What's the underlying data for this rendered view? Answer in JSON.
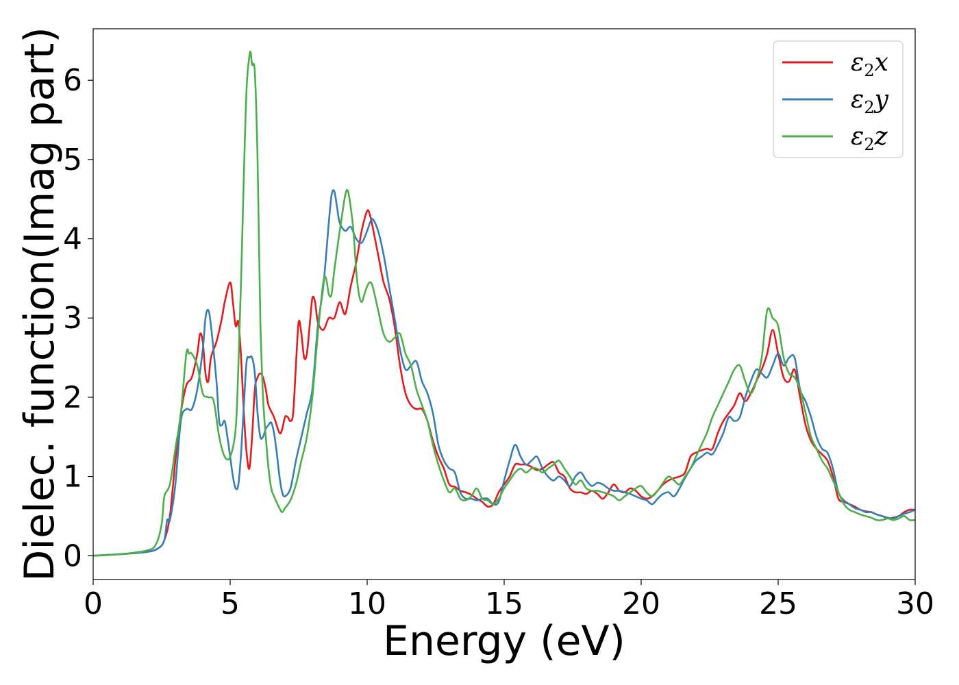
{
  "chart_data": {
    "type": "line",
    "xlabel": "Energy (eV)",
    "ylabel": "Dielec. function(Imag part)",
    "xlim": [
      0,
      30
    ],
    "ylim": [
      -0.3,
      6.65
    ],
    "xticks": [
      0,
      5,
      10,
      15,
      20,
      25,
      30
    ],
    "yticks": [
      0,
      1,
      2,
      3,
      4,
      5,
      6
    ],
    "grid": false,
    "legend_position": "top-right",
    "series": [
      {
        "name": "ε₂x",
        "legend_base": "ε",
        "legend_sub": "2",
        "legend_var": "x",
        "color": "#e41a1c",
        "x": [
          0,
          1,
          2,
          2.4,
          2.6,
          2.8,
          3.0,
          3.2,
          3.4,
          3.6,
          3.8,
          3.9,
          4.0,
          4.1,
          4.2,
          4.3,
          4.5,
          4.7,
          4.8,
          5.0,
          5.1,
          5.2,
          5.3,
          5.4,
          5.5,
          5.6,
          5.7,
          5.8,
          5.9,
          6.0,
          6.1,
          6.2,
          6.3,
          6.4,
          6.6,
          6.8,
          6.9,
          7.0,
          7.1,
          7.2,
          7.3,
          7.4,
          7.5,
          7.6,
          7.7,
          7.8,
          7.9,
          8.0,
          8.1,
          8.2,
          8.4,
          8.6,
          8.8,
          9.0,
          9.2,
          9.4,
          9.6,
          9.8,
          10.0,
          10.1,
          10.2,
          10.4,
          10.6,
          10.8,
          11.0,
          11.2,
          11.4,
          11.6,
          11.8,
          12.0,
          12.2,
          12.4,
          12.6,
          12.8,
          13.0,
          13.2,
          13.4,
          13.6,
          13.8,
          14.0,
          14.2,
          14.4,
          14.6,
          14.8,
          15.0,
          15.2,
          15.4,
          15.6,
          15.8,
          16.0,
          16.2,
          16.4,
          16.6,
          16.8,
          17.0,
          17.2,
          17.4,
          17.6,
          17.8,
          18.0,
          18.2,
          18.4,
          18.6,
          18.8,
          19.0,
          19.2,
          19.4,
          19.6,
          19.8,
          20.0,
          20.2,
          20.4,
          20.6,
          20.8,
          21.0,
          21.2,
          21.4,
          21.6,
          21.8,
          22.0,
          22.2,
          22.4,
          22.6,
          22.8,
          23.0,
          23.2,
          23.4,
          23.6,
          23.8,
          24.0,
          24.2,
          24.4,
          24.6,
          24.8,
          25.0,
          25.2,
          25.4,
          25.6,
          25.8,
          26.0,
          26.2,
          26.4,
          26.6,
          26.8,
          27.0,
          27.2,
          27.4,
          27.6,
          27.8,
          28.0,
          28.2,
          28.4,
          28.6,
          28.8,
          29.0,
          29.2,
          29.4,
          29.6,
          29.8,
          30.0
        ],
        "y": [
          0,
          0.02,
          0.05,
          0.1,
          0.2,
          0.5,
          1.2,
          1.8,
          2.15,
          2.25,
          2.55,
          2.8,
          2.7,
          2.3,
          2.2,
          2.5,
          2.7,
          3.0,
          3.2,
          3.45,
          3.2,
          2.9,
          2.95,
          2.5,
          1.8,
          1.3,
          1.1,
          1.5,
          2.1,
          2.25,
          2.3,
          2.25,
          2.1,
          1.9,
          1.75,
          1.55,
          1.6,
          1.75,
          1.75,
          1.7,
          1.8,
          2.4,
          2.95,
          2.8,
          2.5,
          2.55,
          2.9,
          3.25,
          3.2,
          2.95,
          2.85,
          3.0,
          3.0,
          3.2,
          3.05,
          3.4,
          3.7,
          4.1,
          4.35,
          4.3,
          4.15,
          3.8,
          3.45,
          3.25,
          2.9,
          2.4,
          2.05,
          1.9,
          1.85,
          1.85,
          1.7,
          1.45,
          1.25,
          1.1,
          0.9,
          0.87,
          0.82,
          0.8,
          0.77,
          0.72,
          0.68,
          0.62,
          0.65,
          0.8,
          0.9,
          1.0,
          1.15,
          1.15,
          1.15,
          1.12,
          1.08,
          1.1,
          1.15,
          1.18,
          1.05,
          1.0,
          0.85,
          0.8,
          0.8,
          0.78,
          0.82,
          0.78,
          0.72,
          0.8,
          0.9,
          0.82,
          0.8,
          0.85,
          0.82,
          0.75,
          0.72,
          0.75,
          0.82,
          0.9,
          0.95,
          0.98,
          1.0,
          1.05,
          1.25,
          1.3,
          1.33,
          1.35,
          1.35,
          1.55,
          1.7,
          1.8,
          1.9,
          2.05,
          1.95,
          2.05,
          2.2,
          2.35,
          2.55,
          2.85,
          2.55,
          2.25,
          2.2,
          2.35,
          2.0,
          1.65,
          1.45,
          1.35,
          1.28,
          1.2,
          1.0,
          0.72,
          0.68,
          0.65,
          0.62,
          0.58,
          0.56,
          0.55,
          0.52,
          0.5,
          0.47,
          0.48,
          0.5,
          0.55,
          0.58,
          0.58
        ]
      },
      {
        "name": "ε₂y",
        "legend_base": "ε",
        "legend_sub": "2",
        "legend_var": "y",
        "color": "#377eb8",
        "x": [
          0,
          1,
          2,
          2.4,
          2.6,
          2.7,
          2.8,
          3.0,
          3.2,
          3.4,
          3.6,
          3.8,
          4.0,
          4.1,
          4.2,
          4.3,
          4.5,
          4.6,
          4.7,
          4.8,
          4.9,
          5.0,
          5.1,
          5.2,
          5.3,
          5.4,
          5.5,
          5.6,
          5.7,
          5.8,
          5.9,
          6.0,
          6.1,
          6.2,
          6.3,
          6.4,
          6.5,
          6.6,
          6.7,
          6.8,
          6.9,
          7.0,
          7.2,
          7.4,
          7.6,
          7.8,
          8.0,
          8.2,
          8.4,
          8.6,
          8.7,
          8.8,
          8.9,
          9.0,
          9.2,
          9.4,
          9.6,
          9.8,
          10.0,
          10.1,
          10.2,
          10.4,
          10.6,
          10.8,
          11.0,
          11.2,
          11.4,
          11.6,
          11.8,
          12.0,
          12.2,
          12.4,
          12.6,
          12.8,
          13.0,
          13.2,
          13.4,
          13.6,
          13.8,
          14.0,
          14.2,
          14.4,
          14.6,
          14.8,
          15.0,
          15.2,
          15.4,
          15.6,
          15.8,
          16.0,
          16.2,
          16.4,
          16.6,
          16.8,
          17.0,
          17.2,
          17.4,
          17.6,
          17.8,
          18.0,
          18.2,
          18.4,
          18.6,
          18.8,
          19.0,
          19.2,
          19.4,
          19.6,
          19.8,
          20.0,
          20.2,
          20.4,
          20.6,
          20.8,
          21.0,
          21.2,
          21.4,
          21.6,
          21.8,
          22.0,
          22.2,
          22.4,
          22.6,
          22.8,
          23.0,
          23.2,
          23.4,
          23.6,
          23.8,
          24.0,
          24.2,
          24.4,
          24.6,
          24.8,
          25.0,
          25.2,
          25.4,
          25.6,
          25.8,
          26.0,
          26.2,
          26.4,
          26.6,
          26.8,
          27.0,
          27.2,
          27.4,
          27.6,
          27.8,
          28.0,
          28.2,
          28.4,
          28.6,
          28.8,
          29.0,
          29.2,
          29.4,
          29.6,
          29.8,
          30.0
        ],
        "y": [
          0,
          0.02,
          0.05,
          0.1,
          0.2,
          0.45,
          0.45,
          0.9,
          1.7,
          1.85,
          1.85,
          2.1,
          2.6,
          3.0,
          3.1,
          2.9,
          2.2,
          1.7,
          1.65,
          1.7,
          1.5,
          1.25,
          1.0,
          0.85,
          0.9,
          1.3,
          1.9,
          2.45,
          2.5,
          2.5,
          2.3,
          1.8,
          1.5,
          1.5,
          1.6,
          1.65,
          1.68,
          1.55,
          1.3,
          1.0,
          0.8,
          0.75,
          0.85,
          1.2,
          1.5,
          1.8,
          2.1,
          2.9,
          3.4,
          4.2,
          4.55,
          4.6,
          4.4,
          4.2,
          4.1,
          4.15,
          4.0,
          3.95,
          4.1,
          4.2,
          4.25,
          4.1,
          3.8,
          3.4,
          3.0,
          2.6,
          2.35,
          2.4,
          2.45,
          2.2,
          2.05,
          1.8,
          1.4,
          1.2,
          1.1,
          1.05,
          0.8,
          0.72,
          0.72,
          0.7,
          0.72,
          0.72,
          0.65,
          0.68,
          0.95,
          1.2,
          1.4,
          1.25,
          1.15,
          1.2,
          1.25,
          1.1,
          1.0,
          0.95,
          1.0,
          0.95,
          0.88,
          1.0,
          1.05,
          0.95,
          0.88,
          0.92,
          0.9,
          0.85,
          0.82,
          0.82,
          0.8,
          0.78,
          0.75,
          0.72,
          0.7,
          0.65,
          0.72,
          0.78,
          0.8,
          0.75,
          0.85,
          0.98,
          1.1,
          1.2,
          1.25,
          1.3,
          1.28,
          1.4,
          1.55,
          1.75,
          1.7,
          1.75,
          2.0,
          2.2,
          2.35,
          2.3,
          2.25,
          2.4,
          2.55,
          2.4,
          2.5,
          2.5,
          2.1,
          1.95,
          1.75,
          1.5,
          1.35,
          1.3,
          1.1,
          0.8,
          0.7,
          0.65,
          0.6,
          0.58,
          0.55,
          0.55,
          0.52,
          0.5,
          0.48,
          0.47,
          0.5,
          0.53,
          0.55,
          0.58
        ]
      },
      {
        "name": "ε₂z",
        "legend_base": "ε",
        "legend_sub": "2",
        "legend_var": "z",
        "color": "#4daf4a",
        "x": [
          0,
          1,
          2,
          2.3,
          2.5,
          2.6,
          2.8,
          3.0,
          3.2,
          3.4,
          3.5,
          3.6,
          3.8,
          4.0,
          4.2,
          4.4,
          4.6,
          4.8,
          5.0,
          5.2,
          5.3,
          5.4,
          5.5,
          5.6,
          5.7,
          5.75,
          5.8,
          5.9,
          6.0,
          6.1,
          6.2,
          6.3,
          6.4,
          6.5,
          6.6,
          6.8,
          6.9,
          7.0,
          7.2,
          7.4,
          7.6,
          7.8,
          8.0,
          8.2,
          8.4,
          8.5,
          8.6,
          8.7,
          8.8,
          9.0,
          9.2,
          9.3,
          9.4,
          9.5,
          9.6,
          9.7,
          9.8,
          9.9,
          10.0,
          10.1,
          10.2,
          10.4,
          10.6,
          10.8,
          11.0,
          11.2,
          11.4,
          11.6,
          11.8,
          12.0,
          12.2,
          12.4,
          12.6,
          12.8,
          13.0,
          13.2,
          13.4,
          13.6,
          13.8,
          14.0,
          14.2,
          14.4,
          14.6,
          14.8,
          15.0,
          15.2,
          15.4,
          15.6,
          15.8,
          16.0,
          16.2,
          16.4,
          16.6,
          16.8,
          17.0,
          17.2,
          17.4,
          17.6,
          17.8,
          18.0,
          18.2,
          18.4,
          18.6,
          18.8,
          19.0,
          19.2,
          19.4,
          19.6,
          19.8,
          20.0,
          20.2,
          20.4,
          20.6,
          20.8,
          21.0,
          21.2,
          21.4,
          21.6,
          21.8,
          22.0,
          22.2,
          22.4,
          22.6,
          22.8,
          23.0,
          23.2,
          23.4,
          23.6,
          23.8,
          24.0,
          24.2,
          24.4,
          24.6,
          24.8,
          25.0,
          25.2,
          25.4,
          25.6,
          25.8,
          26.0,
          26.2,
          26.4,
          26.6,
          26.8,
          27.0,
          27.2,
          27.4,
          27.6,
          27.8,
          28.0,
          28.2,
          28.4,
          28.6,
          28.8,
          29.0,
          29.2,
          29.4,
          29.6,
          29.8,
          30.0
        ],
        "y": [
          0,
          0.02,
          0.07,
          0.15,
          0.4,
          0.75,
          0.9,
          1.35,
          1.8,
          2.55,
          2.55,
          2.55,
          2.4,
          2.05,
          2.0,
          1.95,
          1.5,
          1.25,
          1.25,
          1.6,
          2.4,
          3.5,
          4.8,
          5.9,
          6.3,
          6.35,
          6.2,
          6.1,
          5.0,
          3.0,
          2.0,
          1.5,
          1.1,
          0.85,
          0.75,
          0.6,
          0.55,
          0.6,
          0.7,
          0.9,
          1.2,
          1.5,
          2.0,
          2.8,
          3.45,
          3.5,
          3.3,
          3.3,
          3.6,
          4.1,
          4.55,
          4.6,
          4.4,
          4.1,
          3.6,
          3.3,
          3.2,
          3.3,
          3.4,
          3.45,
          3.4,
          3.1,
          2.8,
          2.7,
          2.75,
          2.8,
          2.55,
          2.4,
          2.1,
          1.9,
          1.7,
          1.4,
          1.15,
          0.95,
          0.8,
          0.85,
          0.72,
          0.7,
          0.75,
          0.85,
          0.72,
          0.7,
          0.65,
          0.72,
          0.85,
          0.95,
          1.05,
          1.1,
          1.05,
          1.1,
          1.1,
          1.05,
          1.1,
          1.15,
          1.2,
          1.1,
          1.0,
          0.9,
          0.95,
          0.85,
          0.82,
          0.82,
          0.8,
          0.78,
          0.75,
          0.7,
          0.75,
          0.8,
          0.85,
          0.88,
          0.8,
          0.75,
          0.82,
          0.92,
          1.0,
          0.95,
          0.9,
          1.0,
          1.1,
          1.25,
          1.4,
          1.55,
          1.75,
          1.9,
          2.05,
          2.2,
          2.35,
          2.4,
          2.2,
          2.05,
          2.2,
          2.5,
          3.1,
          3.0,
          2.9,
          2.5,
          2.3,
          2.25,
          2.1,
          1.8,
          1.5,
          1.35,
          1.2,
          1.1,
          0.95,
          0.8,
          0.65,
          0.58,
          0.55,
          0.52,
          0.5,
          0.48,
          0.45,
          0.45,
          0.47,
          0.45,
          0.47,
          0.5,
          0.45,
          0.45
        ]
      }
    ]
  }
}
